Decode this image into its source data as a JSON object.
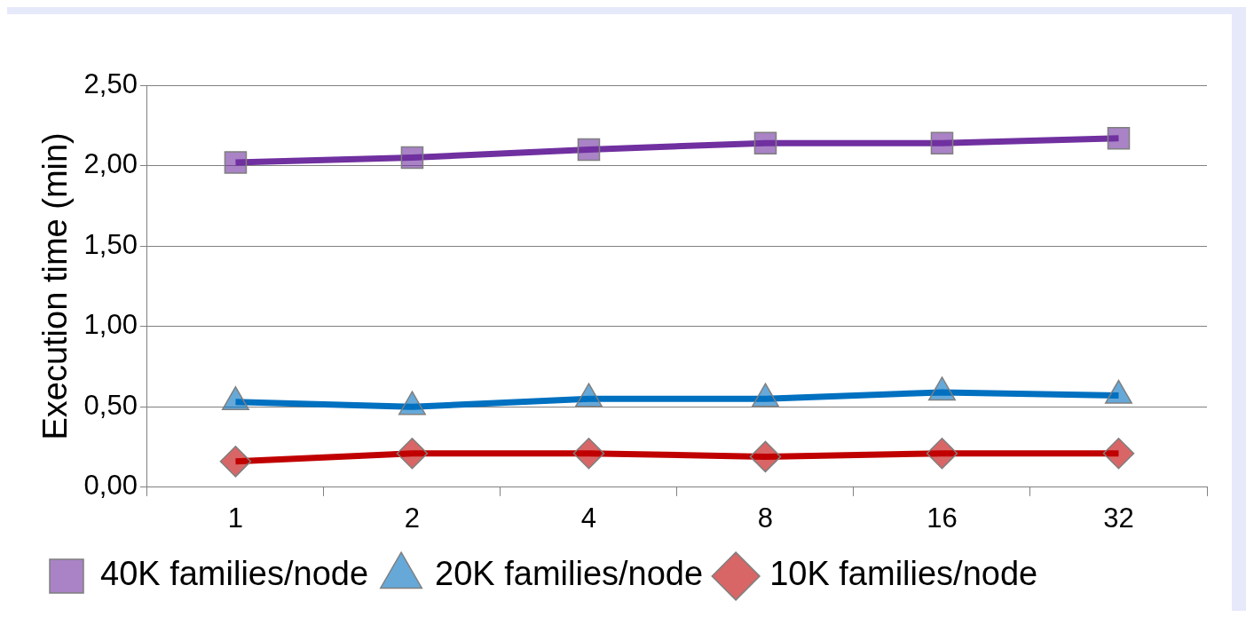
{
  "chart_data": {
    "type": "line",
    "ylabel": "Execution time (min)",
    "categories": [
      "1",
      "2",
      "4",
      "8",
      "16",
      "32"
    ],
    "series": [
      {
        "name": "40K families/node",
        "color": "#7030a0",
        "marker": "square",
        "values": [
          2.02,
          2.05,
          2.1,
          2.14,
          2.14,
          2.17
        ]
      },
      {
        "name": "20K families/node",
        "color": "#0070c0",
        "marker": "triangle",
        "values": [
          0.53,
          0.5,
          0.55,
          0.55,
          0.59,
          0.57
        ]
      },
      {
        "name": "10K families/node",
        "color": "#c00000",
        "marker": "diamond",
        "values": [
          0.16,
          0.21,
          0.21,
          0.19,
          0.21,
          0.21
        ]
      }
    ],
    "ylim": [
      0,
      2.5
    ],
    "yticks": [
      {
        "value": 0,
        "label": "0,00"
      },
      {
        "value": 0.5,
        "label": "0,50"
      },
      {
        "value": 1,
        "label": "1,00"
      },
      {
        "value": 1.5,
        "label": "1,50"
      },
      {
        "value": 2,
        "label": "2,00"
      },
      {
        "value": 2.5,
        "label": "2,50"
      }
    ],
    "grid": "y",
    "legend": "bottom",
    "line_style": "solid"
  }
}
